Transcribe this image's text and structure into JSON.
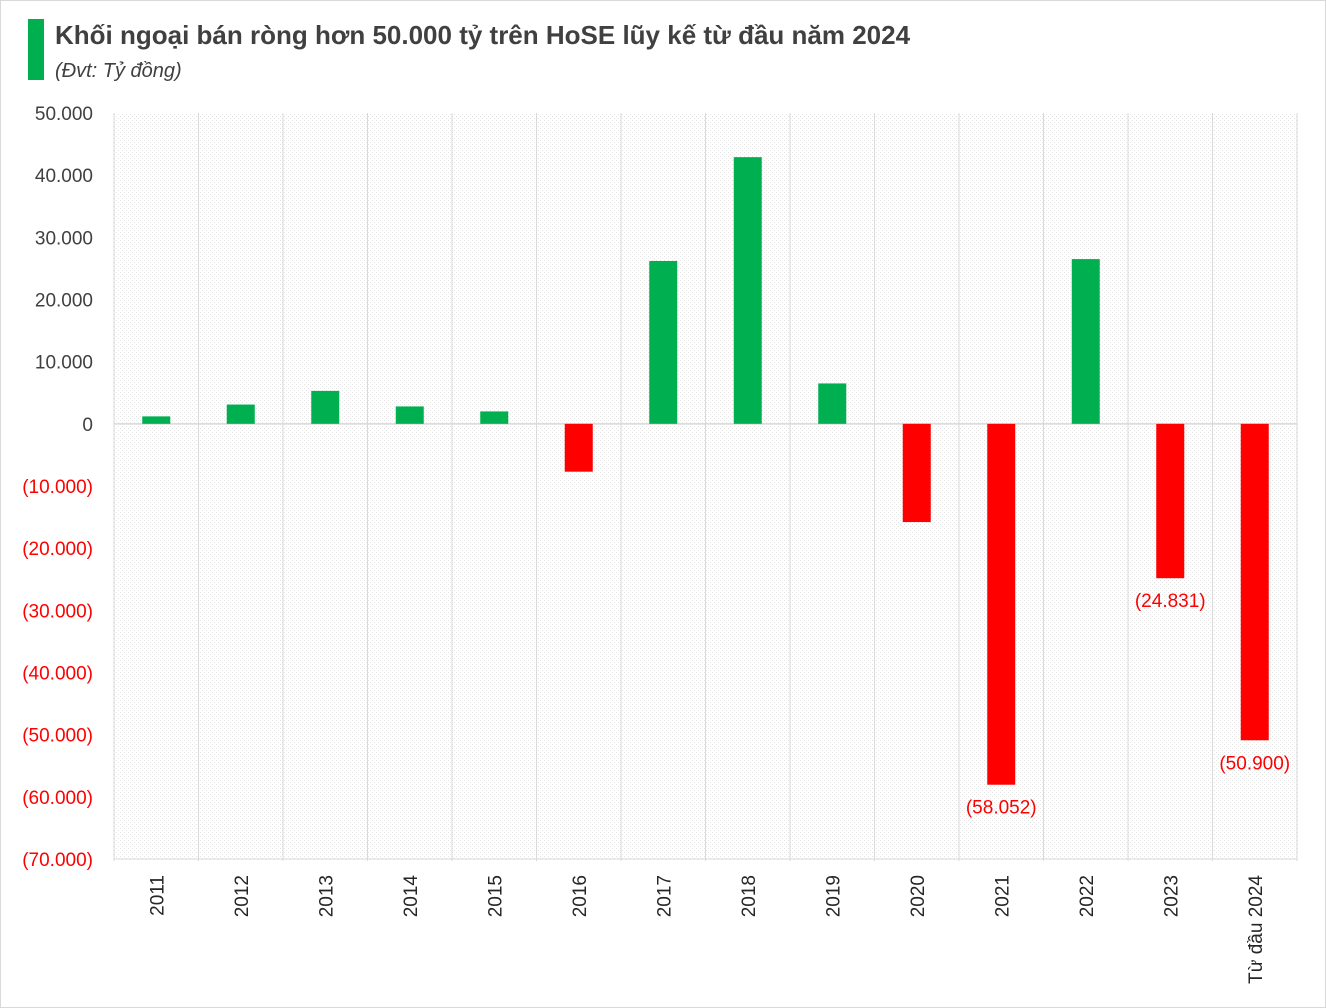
{
  "header": {
    "title": "Khối ngoại bán ròng hơn 50.000 tỷ trên HoSE lũy kế từ đầu năm 2024",
    "subtitle": "(Đvt: Tỷ đồng)"
  },
  "colors": {
    "positive": "#00b050",
    "negative": "#ff0000",
    "title_accent": "#00b050",
    "positive_tick": "#404040",
    "negative_tick": "#ff0000"
  },
  "chart_data": {
    "type": "bar",
    "title": "Khối ngoại bán ròng hơn 50.000 tỷ trên HoSE lũy kế từ đầu năm 2024",
    "subtitle": "(Đvt: Tỷ đồng)",
    "xlabel": "",
    "ylabel": "",
    "categories": [
      "2011",
      "2012",
      "2013",
      "2014",
      "2015",
      "2016",
      "2017",
      "2018",
      "2019",
      "2020",
      "2021",
      "2022",
      "2023",
      "Từ đầu 2024"
    ],
    "values": [
      1200,
      3100,
      5300,
      2800,
      2000,
      -7700,
      26200,
      42900,
      6500,
      -15800,
      -58052,
      26500,
      -24831,
      -50900
    ],
    "data_labels": [
      "",
      "",
      "",
      "",
      "",
      "",
      "",
      "",
      "",
      "",
      "(58.052)",
      "",
      "(24.831)",
      "(50.900)"
    ],
    "ylim": [
      -70000,
      50000
    ],
    "yticks": [
      {
        "value": 50000,
        "label": "50.000"
      },
      {
        "value": 40000,
        "label": "40.000"
      },
      {
        "value": 30000,
        "label": "30.000"
      },
      {
        "value": 20000,
        "label": "20.000"
      },
      {
        "value": 10000,
        "label": "10.000"
      },
      {
        "value": 0,
        "label": "0"
      },
      {
        "value": -10000,
        "label": "(10.000)"
      },
      {
        "value": -20000,
        "label": "(20.000)"
      },
      {
        "value": -30000,
        "label": "(30.000)"
      },
      {
        "value": -40000,
        "label": "(40.000)"
      },
      {
        "value": -50000,
        "label": "(50.000)"
      },
      {
        "value": -60000,
        "label": "(60.000)"
      },
      {
        "value": -70000,
        "label": "(70.000)"
      }
    ],
    "grid": "vertical",
    "legend": "none"
  }
}
